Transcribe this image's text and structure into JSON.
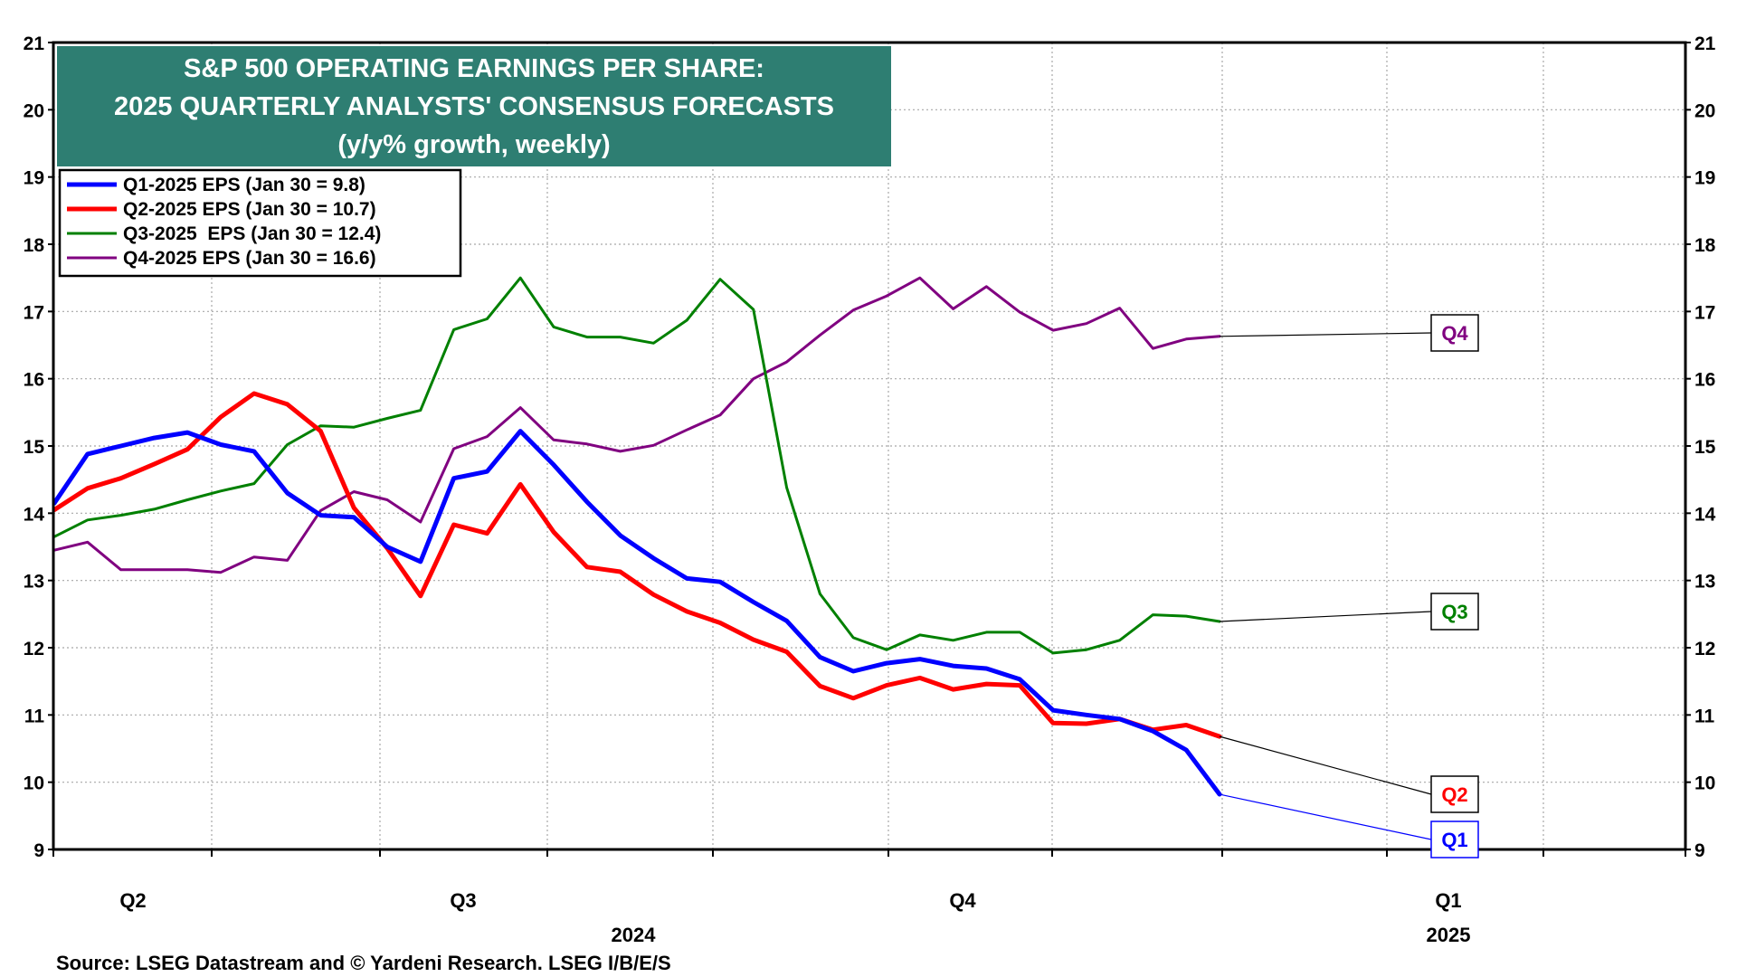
{
  "source": "Source: LSEG Datastream and © Yardeni Research. LSEG I/B/E/S",
  "chart_data": {
    "type": "line",
    "title": "S&P 500 OPERATING EARNINGS PER SHARE:",
    "subtitle": "2025 QUARTERLY ANALYSTS' CONSENSUS FORECASTS",
    "note": "(y/y% growth, weekly)",
    "ylim": [
      9,
      21
    ],
    "yticks": [
      9,
      10,
      11,
      12,
      13,
      14,
      15,
      16,
      17,
      18,
      19,
      20,
      21
    ],
    "x_quarter_labels": [
      "Q2",
      "Q3",
      "Q4",
      "Q1"
    ],
    "x_year_labels": [
      "2024",
      "2025"
    ],
    "grid": true,
    "legend_position": "top-left",
    "colors": {
      "title_bg": "#2e7e72",
      "q1": "#0000ff",
      "q2": "#ff0000",
      "q3": "#008000",
      "q4": "#800080"
    },
    "series": [
      {
        "name": "Q1-2025 EPS (Jan 30 = 9.8)",
        "callout": "Q1",
        "color": "#0000ff",
        "values": [
          14.15,
          14.88,
          15.0,
          15.12,
          15.2,
          15.02,
          14.92,
          14.3,
          13.97,
          13.94,
          13.5,
          13.28,
          14.52,
          14.62,
          15.22,
          14.72,
          14.17,
          13.67,
          13.33,
          13.03,
          12.98,
          12.68,
          12.4,
          11.86,
          11.65,
          11.77,
          11.83,
          11.73,
          11.69,
          11.53,
          11.07,
          11.0,
          10.94,
          10.76,
          10.48,
          9.82
        ]
      },
      {
        "name": "Q2-2025 EPS (Jan 30 = 10.7)",
        "callout": "Q2",
        "color": "#ff0000",
        "values": [
          14.05,
          14.37,
          14.52,
          14.73,
          14.95,
          15.43,
          15.78,
          15.62,
          15.22,
          14.08,
          13.48,
          12.77,
          13.83,
          13.7,
          14.43,
          13.72,
          13.2,
          13.13,
          12.79,
          12.54,
          12.37,
          12.12,
          11.94,
          11.43,
          11.25,
          11.44,
          11.55,
          11.38,
          11.46,
          11.44,
          10.88,
          10.87,
          10.94,
          10.78,
          10.85,
          10.68
        ]
      },
      {
        "name": "Q3-2025  EPS (Jan 30 = 12.4)",
        "callout": "Q3",
        "color": "#008000",
        "values": [
          13.65,
          13.9,
          13.97,
          14.06,
          14.2,
          14.33,
          14.44,
          15.02,
          15.3,
          15.28,
          15.41,
          15.53,
          16.73,
          16.89,
          17.5,
          16.77,
          16.62,
          16.62,
          16.53,
          16.87,
          17.48,
          17.03,
          14.38,
          12.8,
          12.15,
          11.97,
          12.19,
          12.11,
          12.23,
          12.23,
          11.92,
          11.97,
          12.11,
          12.49,
          12.47,
          12.39
        ]
      },
      {
        "name": "Q4-2025 EPS (Jan 30 = 16.6)",
        "callout": "Q4",
        "color": "#800080",
        "values": [
          13.45,
          13.57,
          13.16,
          13.16,
          13.16,
          13.12,
          13.35,
          13.3,
          14.04,
          14.32,
          14.2,
          13.87,
          14.96,
          15.14,
          15.57,
          15.09,
          15.03,
          14.92,
          15.01,
          15.24,
          15.46,
          16.0,
          16.25,
          16.65,
          17.02,
          17.23,
          17.5,
          17.04,
          17.37,
          16.99,
          16.72,
          16.82,
          17.05,
          16.45,
          16.59,
          16.63
        ]
      }
    ]
  }
}
